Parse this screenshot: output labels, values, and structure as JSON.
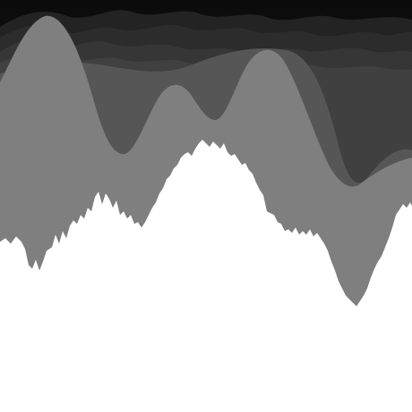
{
  "image": {
    "description": "",
    "background": "#ffffff",
    "palette": {
      "sky_top": "#0b0b0b",
      "sky_bottom": "#1c1c1c",
      "far_ridge_1": "#232323",
      "far_ridge_2": "#2c2c2c",
      "far_ridge_3": "#363636",
      "far_ridge_4": "#404040",
      "mid_ridge": "#565656",
      "near_ridge": "#7f7f7f",
      "foreground": "#ffffff"
    },
    "layers": [
      {
        "id": "sky",
        "kind": "gradient"
      },
      {
        "id": "far-ridge-1",
        "kind": "smooth-ridge"
      },
      {
        "id": "far-ridge-2",
        "kind": "smooth-ridge"
      },
      {
        "id": "far-ridge-3",
        "kind": "smooth-ridge"
      },
      {
        "id": "far-ridge-4",
        "kind": "smooth-ridge"
      },
      {
        "id": "mid-ridge",
        "kind": "smooth-ridge"
      },
      {
        "id": "near-ridge",
        "kind": "peaked-ridge"
      },
      {
        "id": "foreground-hill",
        "kind": "jagged-ridge"
      }
    ]
  }
}
